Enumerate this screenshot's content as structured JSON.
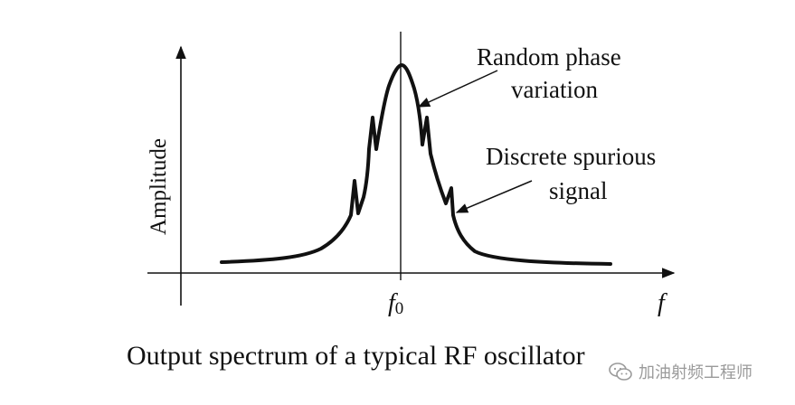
{
  "diagram": {
    "axis_y_label": "Amplitude",
    "axis_x_label": "f",
    "center_label": "f",
    "center_label_sub": "0",
    "annotation_phase_line1": "Random phase",
    "annotation_phase_line2": "variation",
    "annotation_spur_line1": "Discrete spurious",
    "annotation_spur_line2": "signal",
    "caption": "Output spectrum of a typical RF oscillator"
  },
  "watermark": {
    "text": "加油射频工程师"
  },
  "colors": {
    "ink": "#111111",
    "watermark": "#9a9a9a"
  }
}
